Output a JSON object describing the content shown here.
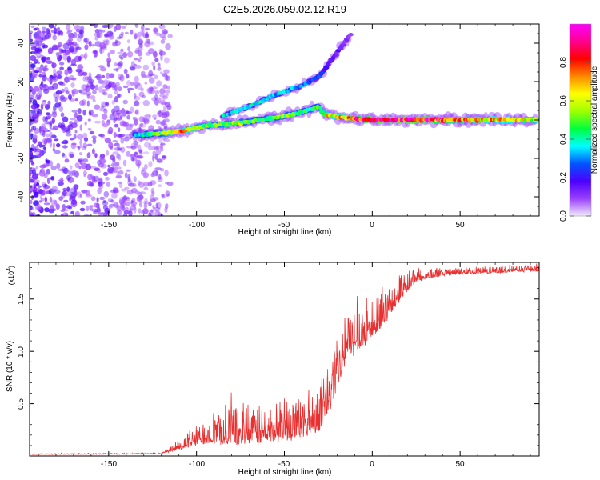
{
  "title": "C2E5.2026.059.02.12.R19",
  "chart_data": [
    {
      "type": "heatmap",
      "name": "spectrogram",
      "xlabel": "Height of straight line (km)",
      "ylabel": "Frequency (Hz)",
      "xlim": [
        -195,
        95
      ],
      "ylim": [
        -50,
        50
      ],
      "xticks": [
        -150,
        -100,
        -50,
        0,
        50
      ],
      "xtick_labels": [
        "-150",
        "-100",
        "-50",
        "0",
        "50"
      ],
      "yticks": [
        -40,
        -20,
        0,
        20,
        40
      ],
      "ytick_labels": [
        "-40",
        "-20",
        "0",
        "20",
        "40"
      ],
      "colorbar": {
        "label": "Normalized spectral amplitude",
        "range": [
          0,
          1
        ],
        "ticks": [
          0.0,
          0.2,
          0.4,
          0.6,
          0.8
        ],
        "tick_labels": [
          "0.0",
          "0.2",
          "0.4",
          "0.6",
          "0.8"
        ],
        "colors": [
          "#f2eaff",
          "#9a40ff",
          "#4b00ff",
          "#0055ff",
          "#00ffff",
          "#00ff3c",
          "#a0ff00",
          "#ffff00",
          "#ff8800",
          "#ff0000",
          "#ff0090",
          "#ff00ff"
        ]
      },
      "noise_region_x": [
        -195,
        -115
      ],
      "main_band": [
        {
          "x": -135,
          "y": -8,
          "v": 0.35
        },
        {
          "x": -120,
          "y": -7,
          "v": 0.5
        },
        {
          "x": -110,
          "y": -6,
          "v": 0.75
        },
        {
          "x": -95,
          "y": -3,
          "v": 0.5
        },
        {
          "x": -80,
          "y": -2,
          "v": 0.55
        },
        {
          "x": -65,
          "y": 0,
          "v": 0.45
        },
        {
          "x": -50,
          "y": 2,
          "v": 0.5
        },
        {
          "x": -40,
          "y": 4,
          "v": 0.45
        },
        {
          "x": -30,
          "y": 7,
          "v": 0.5
        },
        {
          "x": -28,
          "y": 3,
          "v": 0.6
        },
        {
          "x": -15,
          "y": 1,
          "v": 0.7
        },
        {
          "x": 0,
          "y": 0,
          "v": 0.9
        },
        {
          "x": 25,
          "y": 0,
          "v": 0.9
        },
        {
          "x": 60,
          "y": 0,
          "v": 0.7
        },
        {
          "x": 94,
          "y": 0,
          "v": 0.6
        }
      ],
      "branch_band": [
        {
          "x": -85,
          "y": 2,
          "v": 0.35
        },
        {
          "x": -70,
          "y": 7,
          "v": 0.4
        },
        {
          "x": -55,
          "y": 13,
          "v": 0.35
        },
        {
          "x": -40,
          "y": 18,
          "v": 0.3
        },
        {
          "x": -30,
          "y": 23,
          "v": 0.25
        },
        {
          "x": -20,
          "y": 35,
          "v": 0.15
        },
        {
          "x": -12,
          "y": 45,
          "v": 0.1
        }
      ]
    },
    {
      "type": "line",
      "name": "snr",
      "xlabel": "Height of straight line (km)",
      "ylabel": "SNR (10 * v/v)",
      "multiplier_label": "(x10",
      "multiplier_exp": "4",
      "multiplier_close": ")",
      "xlim": [
        -195,
        95
      ],
      "ylim": [
        0,
        18500
      ],
      "xticks": [
        -150,
        -100,
        -50,
        0,
        50
      ],
      "xtick_labels": [
        "-150",
        "-100",
        "-50",
        "0",
        "50"
      ],
      "yticks": [
        5000,
        10000,
        15000
      ],
      "ytick_labels": [
        "0.5",
        "1.0",
        "1.5"
      ],
      "color": "#e83030",
      "envelope": [
        {
          "x": -195,
          "base": 150,
          "amp": 80
        },
        {
          "x": -120,
          "base": 200,
          "amp": 120
        },
        {
          "x": -110,
          "base": 700,
          "amp": 900
        },
        {
          "x": -95,
          "base": 1500,
          "amp": 2500
        },
        {
          "x": -80,
          "base": 1500,
          "amp": 3500
        },
        {
          "x": -60,
          "base": 1600,
          "amp": 3500
        },
        {
          "x": -40,
          "base": 2200,
          "amp": 4000
        },
        {
          "x": -30,
          "base": 3000,
          "amp": 4500
        },
        {
          "x": -22,
          "base": 5500,
          "amp": 5500
        },
        {
          "x": -15,
          "base": 9500,
          "amp": 4500
        },
        {
          "x": -5,
          "base": 11000,
          "amp": 4500
        },
        {
          "x": 5,
          "base": 12500,
          "amp": 3500
        },
        {
          "x": 15,
          "base": 15000,
          "amp": 2500
        },
        {
          "x": 25,
          "base": 16800,
          "amp": 1200
        },
        {
          "x": 40,
          "base": 17300,
          "amp": 700
        },
        {
          "x": 60,
          "base": 17500,
          "amp": 600
        },
        {
          "x": 94,
          "base": 17700,
          "amp": 600
        }
      ]
    }
  ]
}
